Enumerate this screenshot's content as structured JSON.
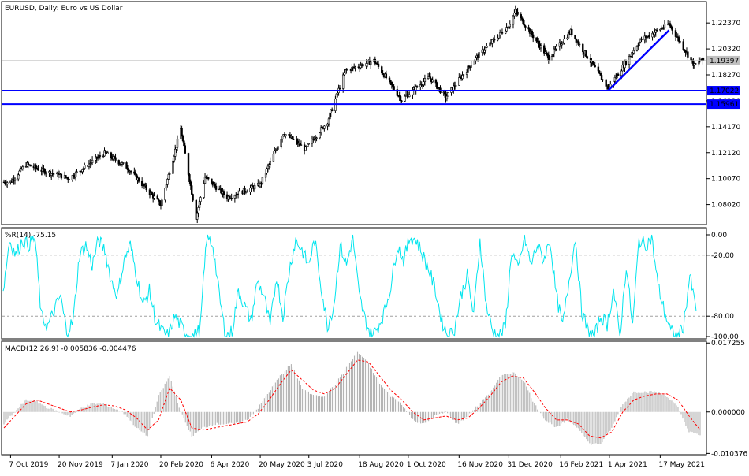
{
  "chart_data": [
    {
      "panel": "main",
      "type": "candlestick",
      "title": "EURUSD, Daily:  Euro vs US Dollar",
      "symbol": "EURUSD",
      "timeframe": "Daily",
      "description": "Euro vs US Dollar",
      "ylim": [
        1.065,
        1.24
      ],
      "price_ticks": [
        "1.22370",
        "1.20320",
        "1.18270",
        "1.16220",
        "1.14170",
        "1.12120",
        "1.10070",
        "1.08020"
      ],
      "price_tick_values": [
        1.2237,
        1.2032,
        1.1827,
        1.1622,
        1.1417,
        1.1212,
        1.1007,
        1.0802
      ],
      "last_price_label": "1.19397",
      "last_price": 1.19397,
      "horizontal_lines": [
        {
          "label": "1.17022",
          "value": 1.17022,
          "color": "#0000ff"
        },
        {
          "label": "1.15961",
          "value": 1.15961,
          "color": "#0000ff"
        }
      ],
      "trendline": {
        "from": {
          "date": "2021-03-31",
          "price": 1.1704
        },
        "to": {
          "date": "2021-05-25",
          "price": 1.218
        },
        "color": "#0000ff"
      },
      "date_ticks": [
        "7 Oct 2019",
        "20 Nov 2019",
        "7 Jan 2020",
        "20 Feb 2020",
        "6 Apr 2020",
        "20 May 2020",
        "3 Jul 2020",
        "18 Aug 2020",
        "1 Oct 2020",
        "16 Nov 2020",
        "31 Dec 2020",
        "16 Feb 2021",
        "1 Apr 2021",
        "17 May 2021"
      ],
      "closes_keypoints": [
        {
          "date": "2019-10-07",
          "close": 1.098
        },
        {
          "date": "2019-10-21",
          "close": 1.112
        },
        {
          "date": "2019-11-05",
          "close": 1.107
        },
        {
          "date": "2019-11-29",
          "close": 1.101
        },
        {
          "date": "2019-12-31",
          "close": 1.121
        },
        {
          "date": "2020-01-20",
          "close": 1.11
        },
        {
          "date": "2020-02-20",
          "close": 1.08
        },
        {
          "date": "2020-03-09",
          "close": 1.14
        },
        {
          "date": "2020-03-23",
          "close": 1.07
        },
        {
          "date": "2020-03-31",
          "close": 1.102
        },
        {
          "date": "2020-04-20",
          "close": 1.086
        },
        {
          "date": "2020-05-20",
          "close": 1.096
        },
        {
          "date": "2020-06-10",
          "close": 1.137
        },
        {
          "date": "2020-06-30",
          "close": 1.124
        },
        {
          "date": "2020-07-20",
          "close": 1.146
        },
        {
          "date": "2020-08-05",
          "close": 1.186
        },
        {
          "date": "2020-08-31",
          "close": 1.194
        },
        {
          "date": "2020-09-25",
          "close": 1.163
        },
        {
          "date": "2020-10-20",
          "close": 1.181
        },
        {
          "date": "2020-11-04",
          "close": 1.165
        },
        {
          "date": "2020-11-30",
          "close": 1.195
        },
        {
          "date": "2020-12-31",
          "close": 1.222
        },
        {
          "date": "2021-01-06",
          "close": 1.233
        },
        {
          "date": "2021-02-05",
          "close": 1.196
        },
        {
          "date": "2021-02-25",
          "close": 1.217
        },
        {
          "date": "2021-03-31",
          "close": 1.172
        },
        {
          "date": "2021-04-29",
          "close": 1.21
        },
        {
          "date": "2021-05-25",
          "close": 1.223
        },
        {
          "date": "2021-06-17",
          "close": 1.19
        },
        {
          "date": "2021-06-22",
          "close": 1.194
        }
      ]
    },
    {
      "panel": "williams_r",
      "type": "line",
      "label": "%R(14) -75.15",
      "color": "#00e5ee",
      "ylim": [
        -100,
        0
      ],
      "y_ticks": [
        "0.00",
        "-20.00",
        "-80.00",
        "-100.00"
      ],
      "y_tick_values": [
        0,
        -20,
        -80,
        -100
      ],
      "levels": [
        -20,
        -80
      ],
      "series": [
        {
          "name": "%R(14)",
          "values": [
            -55,
            -5,
            -20,
            -5,
            -10,
            -3,
            -80,
            -90,
            -75,
            -60,
            -95,
            -85,
            -20,
            -10,
            -30,
            -5,
            -15,
            -45,
            -60,
            -25,
            -10,
            -40,
            -70,
            -55,
            -85,
            -95,
            -100,
            -80,
            -90,
            -98,
            -100,
            -92,
            -2,
            -10,
            -60,
            -100,
            -95,
            -55,
            -70,
            -85,
            -45,
            -60,
            -90,
            -40,
            -80,
            -35,
            -5,
            -15,
            -30,
            -5,
            -50,
            -90,
            -70,
            -10,
            -30,
            -2,
            -60,
            -85,
            -100,
            -90,
            -75,
            -50,
            -10,
            -25,
            -2,
            -5,
            -20,
            -35,
            -55,
            -85,
            -100,
            -92,
            -60,
            -40,
            -80,
            -5,
            -70,
            -95,
            -100,
            -90,
            -15,
            -35,
            -2,
            -30,
            -10,
            -25,
            -5,
            -60,
            -90,
            -45,
            -3,
            -75,
            -95,
            -100,
            -80,
            -88,
            -55,
            -100,
            -30,
            -90,
            -5,
            -10,
            -3,
            -50,
            -75,
            -95,
            -100,
            -90,
            -40,
            -75.15
          ]
        }
      ]
    },
    {
      "panel": "macd",
      "type": "bar",
      "label": "MACD(12,26,9) -0.005836 -0.004476",
      "ylim": [
        -0.0105,
        0.0175
      ],
      "y_ticks": [
        "0.017255",
        "0.000000",
        "-0.010376"
      ],
      "y_tick_values": [
        0.017255,
        0.0,
        -0.010376
      ],
      "series": [
        {
          "name": "MACD",
          "values": [
            -0.003,
            0.0,
            0.003,
            0.0025,
            0.001,
            0.0,
            -0.001,
            0.001,
            0.002,
            0.002,
            0.0008,
            -0.0005,
            -0.004,
            -0.006,
            0.004,
            0.009,
            0.0,
            -0.006,
            -0.004,
            -0.003,
            -0.003,
            -0.003,
            -0.002,
            0.001,
            0.005,
            0.009,
            0.012,
            0.006,
            0.004,
            0.004,
            0.007,
            0.011,
            0.015,
            0.012,
            0.007,
            0.004,
            0.002,
            -0.002,
            -0.003,
            -0.001,
            0.0,
            -0.003,
            -0.001,
            0.002,
            0.005,
            0.009,
            0.01,
            0.008,
            0.002,
            -0.002,
            -0.004,
            -0.002,
            -0.004,
            -0.008,
            -0.008,
            -0.004,
            0.002,
            0.005,
            0.005,
            0.005,
            0.004,
            0.001,
            -0.005,
            -0.005836
          ]
        },
        {
          "name": "Signal",
          "values": [
            -0.004,
            -0.001,
            0.002,
            0.003,
            0.002,
            0.001,
            0.0,
            0.0005,
            0.0012,
            0.0018,
            0.0015,
            0.0005,
            -0.0015,
            -0.0045,
            -0.002,
            0.006,
            0.003,
            -0.004,
            -0.0045,
            -0.004,
            -0.0035,
            -0.003,
            -0.0025,
            -0.0005,
            0.003,
            0.007,
            0.0105,
            0.008,
            0.0055,
            0.0045,
            0.006,
            0.0095,
            0.013,
            0.0125,
            0.009,
            0.0055,
            0.003,
            0.0,
            -0.002,
            -0.0015,
            -0.001,
            -0.002,
            -0.0015,
            0.001,
            0.004,
            0.0075,
            0.009,
            0.0085,
            0.005,
            0.001,
            -0.002,
            -0.002,
            -0.003,
            -0.006,
            -0.0065,
            -0.005,
            0.0,
            0.003,
            0.004,
            0.0045,
            0.0045,
            0.003,
            -0.001,
            -0.004476
          ]
        }
      ]
    }
  ]
}
